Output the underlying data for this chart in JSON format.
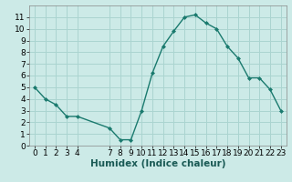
{
  "x": [
    0,
    1,
    2,
    3,
    4,
    7,
    8,
    9,
    10,
    11,
    12,
    13,
    14,
    15,
    16,
    17,
    18,
    19,
    20,
    21,
    22,
    23
  ],
  "y": [
    5.0,
    4.0,
    3.5,
    2.5,
    2.5,
    1.5,
    0.5,
    0.5,
    3.0,
    6.2,
    8.5,
    9.8,
    11.0,
    11.2,
    10.5,
    10.0,
    8.5,
    7.5,
    5.8,
    5.8,
    4.8,
    3.0
  ],
  "line_color": "#1a7a6e",
  "marker_color": "#1a7a6e",
  "bg_color": "#cceae7",
  "grid_color": "#aad4d0",
  "xlabel": "Humidex (Indice chaleur)",
  "xlim": [
    -0.5,
    23.5
  ],
  "ylim": [
    0,
    12
  ],
  "xticks": [
    0,
    1,
    2,
    3,
    4,
    7,
    8,
    9,
    10,
    11,
    12,
    13,
    14,
    15,
    16,
    17,
    18,
    19,
    20,
    21,
    22,
    23
  ],
  "yticks": [
    0,
    1,
    2,
    3,
    4,
    5,
    6,
    7,
    8,
    9,
    10,
    11
  ],
  "tick_label_fontsize": 6.5,
  "xlabel_fontsize": 7.5
}
